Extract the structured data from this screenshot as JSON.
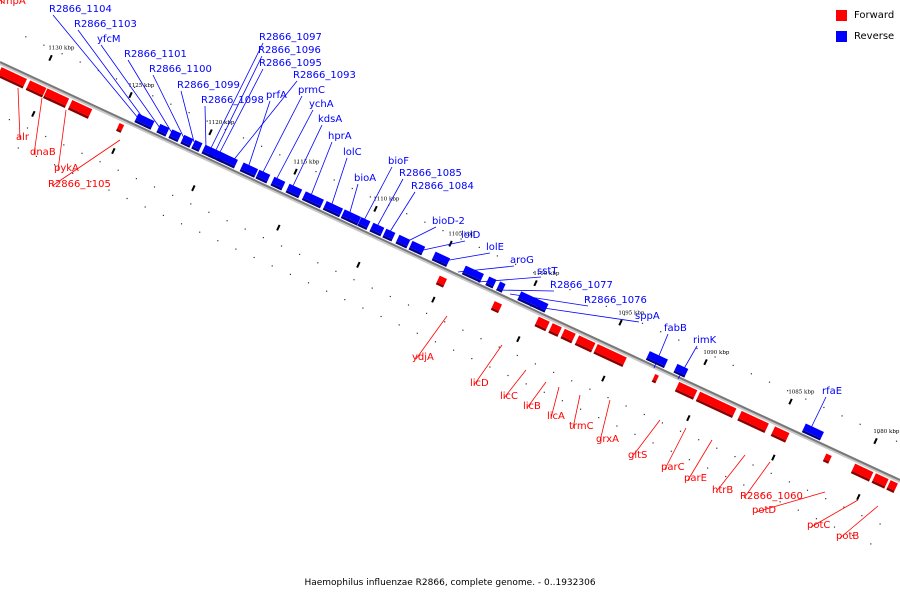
{
  "legend": {
    "forward_label": "Forward",
    "reverse_label": "Reverse",
    "forward_color": "#ff0000",
    "reverse_color": "#0000ff"
  },
  "caption": "Haemophilus influenzae R2866, complete genome. - 0..1932306",
  "kbp_ticks": [
    "1130 kbp",
    "1125 kbp",
    "1120 kbp",
    "1115 kbp",
    "1110 kbp",
    "1105 kbp",
    "1100 kbp",
    "1095 kbp",
    "1090 kbp",
    "1085 kbp",
    "1080 kbp"
  ],
  "reverse_genes": [
    "R2866_1104",
    "R2866_1103",
    "yfcM",
    "R2866_1101",
    "R2866_1100",
    "R2866_1099",
    "R2866_1098",
    "R2866_1097",
    "R2866_1096",
    "R2866_1095",
    "R2866_1093",
    "prfA",
    "prmC",
    "ychA",
    "kdsA",
    "hprA",
    "lolC",
    "bioA",
    "bioF",
    "R2866_1085",
    "R2866_1084",
    "bioD-2",
    "lolD",
    "lolE",
    "aroG",
    "sstT",
    "R2866_1077",
    "R2866_1076",
    "sppA",
    "fabB",
    "rimK",
    "rfaE"
  ],
  "forward_genes": [
    "alr",
    "dnaB",
    "pykA",
    "R2866_1105",
    "impA",
    "ydjA",
    "licD",
    "licC",
    "licB",
    "licA",
    "trmC",
    "grxA",
    "gltS",
    "parC",
    "parE",
    "htrB",
    "R2866_1060",
    "potD",
    "potC",
    "potB"
  ]
}
